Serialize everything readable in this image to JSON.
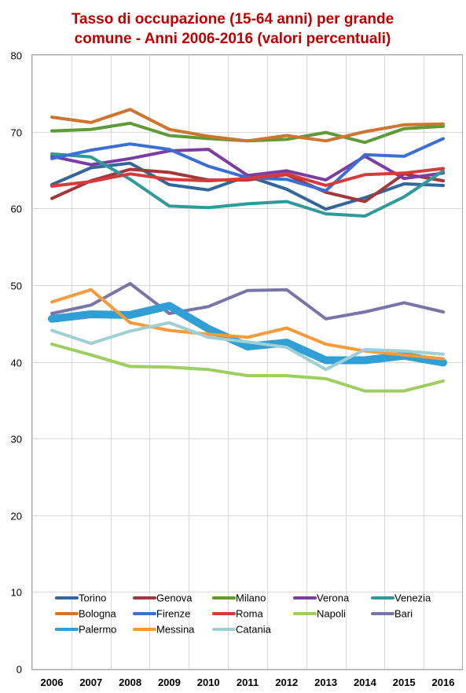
{
  "chart_data": {
    "type": "line",
    "title_lines": [
      "Tasso di occupazione  (15-64 anni) per grande",
      "comune - Anni 2006-2016 (valori percentuali)"
    ],
    "x": [
      "2006",
      "2007",
      "2008",
      "2009",
      "2010",
      "2011",
      "2012",
      "2013",
      "2014",
      "2015",
      "2016"
    ],
    "ylim": [
      0,
      80
    ],
    "yticks": [
      "0",
      "10",
      "20",
      "30",
      "40",
      "50",
      "60",
      "70",
      "80"
    ],
    "grid": true,
    "legend_position": "bottom-inside",
    "series": [
      {
        "name": "Torino",
        "color": "#336699",
        "width": 4,
        "values": [
          63.1,
          65.3,
          65.9,
          63.1,
          62.4,
          64.2,
          62.5,
          59.9,
          61.4,
          63.2,
          63.0
        ]
      },
      {
        "name": "Genova",
        "color": "#a3373a",
        "width": 4,
        "values": [
          61.3,
          63.6,
          65.1,
          64.7,
          63.7,
          63.7,
          64.4,
          62.1,
          60.9,
          64.5,
          63.6
        ]
      },
      {
        "name": "Milano",
        "color": "#5e9a35",
        "width": 4,
        "values": [
          70.1,
          70.3,
          71.1,
          69.5,
          69.1,
          68.8,
          69.0,
          69.9,
          68.6,
          70.4,
          70.7
        ]
      },
      {
        "name": "Verona",
        "color": "#7b3da2",
        "width": 4,
        "values": [
          66.8,
          65.7,
          66.5,
          67.5,
          67.7,
          64.3,
          64.9,
          63.7,
          66.8,
          63.9,
          64.6
        ]
      },
      {
        "name": "Venezia",
        "color": "#2f9a9a",
        "width": 4,
        "values": [
          67.1,
          66.7,
          63.8,
          60.3,
          60.1,
          60.6,
          60.9,
          59.3,
          59.0,
          61.5,
          64.9
        ]
      },
      {
        "name": "Bologna",
        "color": "#cf7530",
        "width": 4,
        "values": [
          71.9,
          71.2,
          72.9,
          70.3,
          69.4,
          68.8,
          69.5,
          68.8,
          70.0,
          70.9,
          71.0
        ]
      },
      {
        "name": "Firenze",
        "color": "#3b6fd6",
        "width": 4,
        "values": [
          66.5,
          67.6,
          68.4,
          67.7,
          65.5,
          64.0,
          63.8,
          62.3,
          67.0,
          66.8,
          69.1
        ]
      },
      {
        "name": "Roma",
        "color": "#d63a3a",
        "width": 4,
        "values": [
          62.9,
          63.5,
          64.5,
          63.8,
          63.6,
          63.9,
          64.5,
          63.0,
          64.4,
          64.6,
          65.2
        ]
      },
      {
        "name": "Napoli",
        "color": "#9ccf5f",
        "width": 4,
        "values": [
          42.3,
          40.9,
          39.4,
          39.3,
          39.0,
          38.2,
          38.2,
          37.8,
          36.2,
          36.2,
          37.5
        ]
      },
      {
        "name": "Bari",
        "color": "#7a75a8",
        "width": 4,
        "values": [
          46.3,
          47.4,
          50.2,
          46.3,
          47.2,
          49.3,
          49.4,
          45.6,
          46.5,
          47.7,
          46.5
        ]
      },
      {
        "name": "Palermo",
        "color": "#2f9fd6",
        "width": 10,
        "values": [
          45.6,
          46.2,
          46.1,
          47.3,
          44.3,
          42.0,
          42.5,
          40.2,
          40.2,
          40.8,
          39.9
        ]
      },
      {
        "name": "Messina",
        "color": "#f79a3c",
        "width": 4,
        "values": [
          47.8,
          49.4,
          45.1,
          44.1,
          43.6,
          43.2,
          44.4,
          42.3,
          41.4,
          40.9,
          40.4
        ]
      },
      {
        "name": "Catania",
        "color": "#9ecfd4",
        "width": 4,
        "values": [
          44.1,
          42.4,
          44.0,
          45.1,
          43.2,
          42.6,
          41.9,
          39.0,
          41.6,
          41.4,
          41.0
        ]
      }
    ]
  }
}
